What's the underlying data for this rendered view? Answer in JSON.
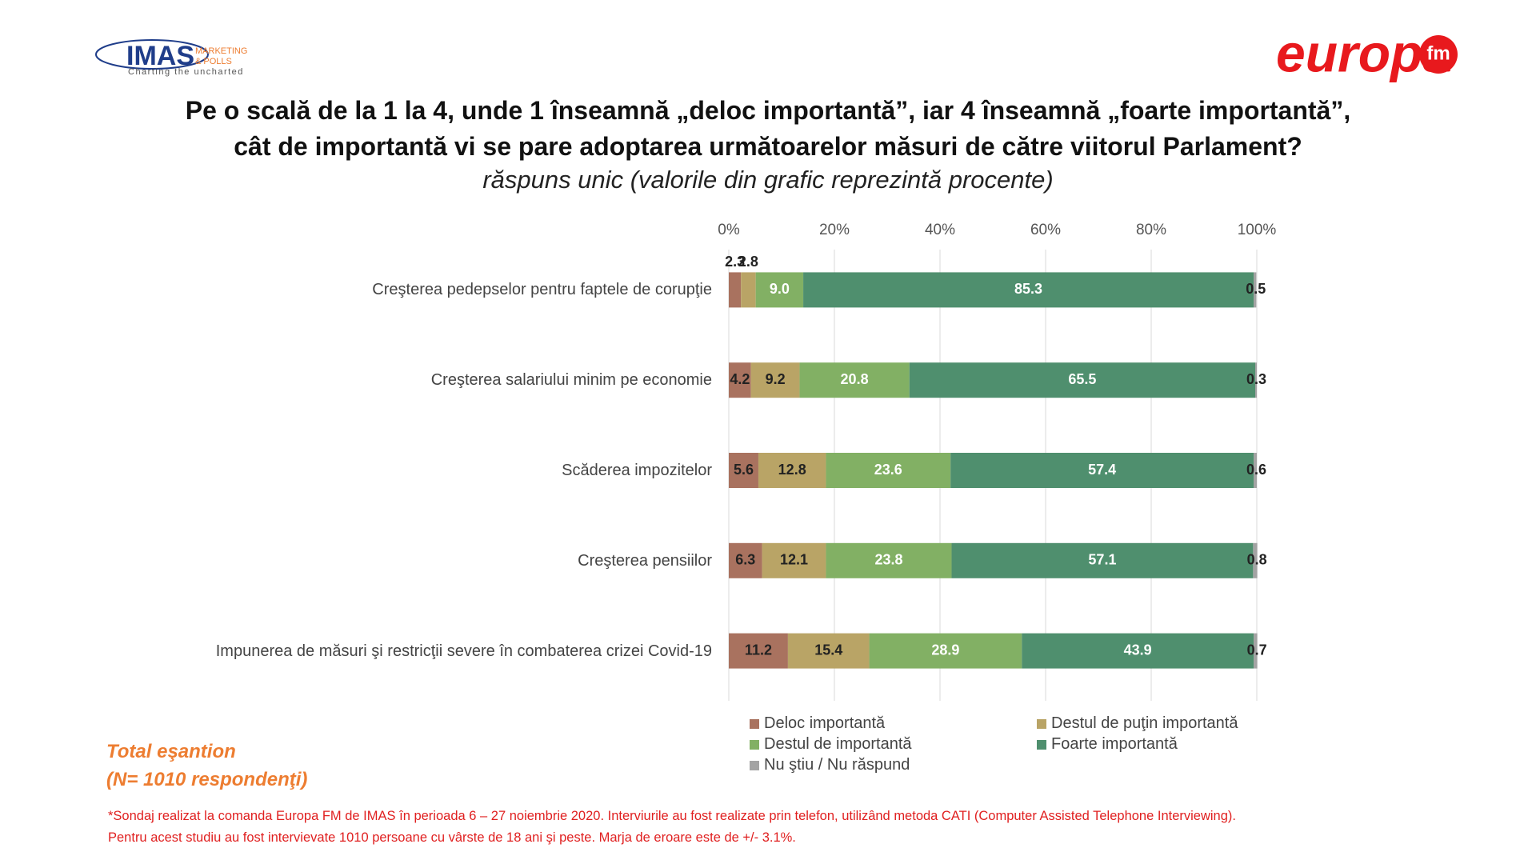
{
  "header": {
    "imas_logo": {
      "name": "IMAS",
      "tagline1": "MARKETING",
      "tagline2": "& POLLS",
      "slogan": "Charting the uncharted"
    },
    "brand_logo": {
      "name": "europa",
      "suffix": "fm"
    }
  },
  "chart_data": {
    "type": "stacked-bar-horizontal",
    "title": [
      "Pe o scală de la 1 la 4, unde 1 înseamnă „deloc importantă”, iar 4 înseamnă „foarte importantă”,",
      "cât de importantă vi se pare adoptarea următoarelor măsuri de către viitorul Parlament?"
    ],
    "subtitle": "răspuns unic (valorile din grafic reprezintă procente)",
    "categories": [
      "Creşterea pedepselor pentru faptele de corupţie",
      "Creşterea salariului minim pe economie",
      "Scăderea impozitelor",
      "Creşterea pensiilor",
      "Impunerea de măsuri şi restricţii severe în combaterea crizei Covid-19"
    ],
    "series": [
      {
        "name": "Deloc importantă",
        "color": "#a9725f",
        "values": [
          2.3,
          4.2,
          5.6,
          6.3,
          11.2
        ],
        "value_labels": [
          "2.3",
          "4.2",
          "5.6",
          "6.3",
          "11.2"
        ]
      },
      {
        "name": "Destul de puţin importantă",
        "color": "#b9a466",
        "values": [
          2.8,
          9.2,
          12.8,
          12.1,
          15.4
        ],
        "value_labels": [
          "2.8",
          "9.2",
          "12.8",
          "12.1",
          "15.4"
        ]
      },
      {
        "name": "Destul de importantă",
        "color": "#82b064",
        "values": [
          9.0,
          20.8,
          23.6,
          23.8,
          28.9
        ],
        "value_labels": [
          "9.0",
          "20.8",
          "23.6",
          "23.8",
          "28.9"
        ]
      },
      {
        "name": "Foarte importantă",
        "color": "#4f8f6e",
        "values": [
          85.3,
          65.5,
          57.4,
          57.1,
          43.9
        ],
        "value_labels": [
          "85.3",
          "65.5",
          "57.4",
          "57.1",
          "43.9"
        ]
      },
      {
        "name": "Nu ştiu / Nu răspund",
        "color": "#a3a3a3",
        "values": [
          0.5,
          0.3,
          0.6,
          0.8,
          0.7
        ],
        "value_labels": [
          "0.5",
          "0.3",
          "0.6",
          "0.8",
          "0.7"
        ]
      }
    ],
    "xlim": [
      0,
      100
    ],
    "xticks": [
      {
        "value": 0,
        "label": "0%"
      },
      {
        "value": 20,
        "label": "20%"
      },
      {
        "value": 40,
        "label": "40%"
      },
      {
        "value": 60,
        "label": "60%"
      },
      {
        "value": 80,
        "label": "80%"
      },
      {
        "value": 100,
        "label": "100%"
      }
    ],
    "grid": true
  },
  "sample_note": [
    "Total eşantion",
    "(N= 1010 respondenţi)"
  ],
  "footnote": [
    "*Sondaj realizat la comanda Europa FM de IMAS în perioada  6 – 27 noiembrie 2020. Interviurile au fost realizate prin telefon, utilizând metoda CATI (Computer Assisted Telephone Interviewing).",
    "Pentru acest studiu au fost intervievate 1010 persoane cu vârste de 18 ani şi peste. Marja de eroare este de +/- 3.1%."
  ]
}
